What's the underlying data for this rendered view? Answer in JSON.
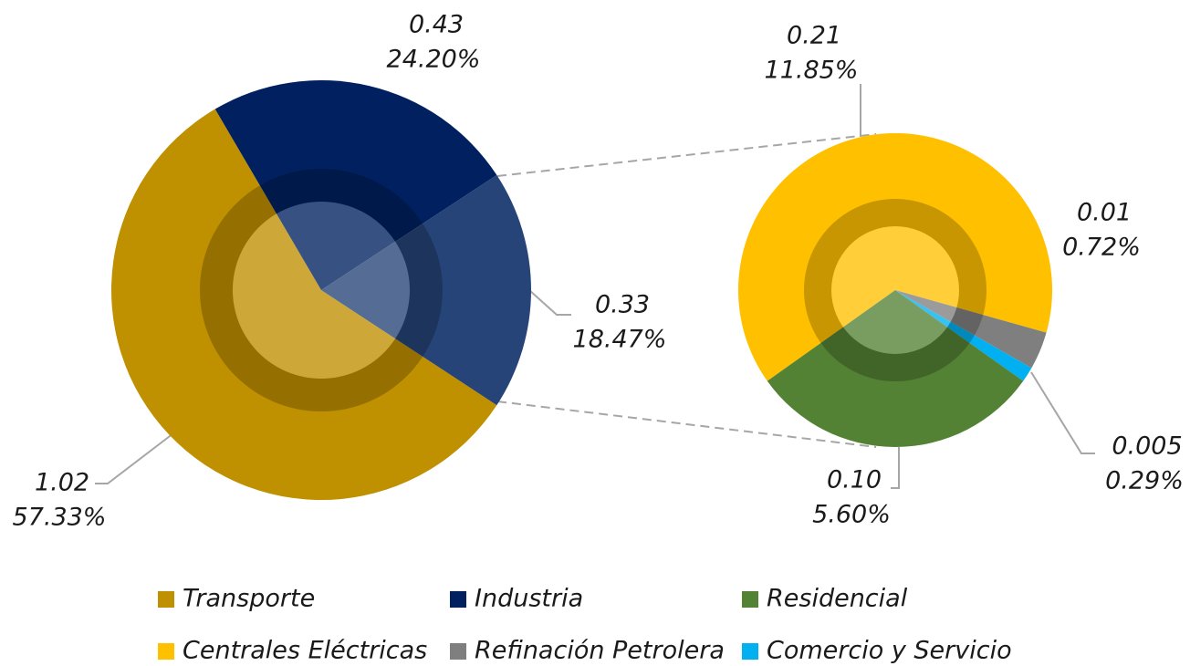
{
  "chart_data": [
    {
      "type": "pie",
      "categories": [
        "Transporte",
        "Industria",
        null
      ],
      "values": [
        1.02,
        0.43,
        0.33
      ],
      "percentages": [
        57.33,
        24.2,
        18.47
      ],
      "percentage_labels": [
        "57.33%",
        "24.20%",
        "18.47%"
      ],
      "colors": [
        "#bf9000",
        "#002060",
        "#264478"
      ]
    },
    {
      "type": "pie",
      "categories": [
        "Centrales Eléctricas",
        "Refinación Petrolera",
        "Comercio y Servicio",
        "Residencial"
      ],
      "values": [
        0.21,
        0.01,
        0.005,
        0.1
      ],
      "value_labels": [
        "0.21",
        "0.01",
        "0.005",
        "0.10"
      ],
      "percentages": [
        11.85,
        0.72,
        0.29,
        5.6
      ],
      "percentage_labels": [
        "11.85%",
        "0.72%",
        "0.29%",
        "5.60%"
      ],
      "colors": [
        "#ffc000",
        "#7f7f7f",
        "#00b0f0",
        "#548235"
      ]
    }
  ]
}
